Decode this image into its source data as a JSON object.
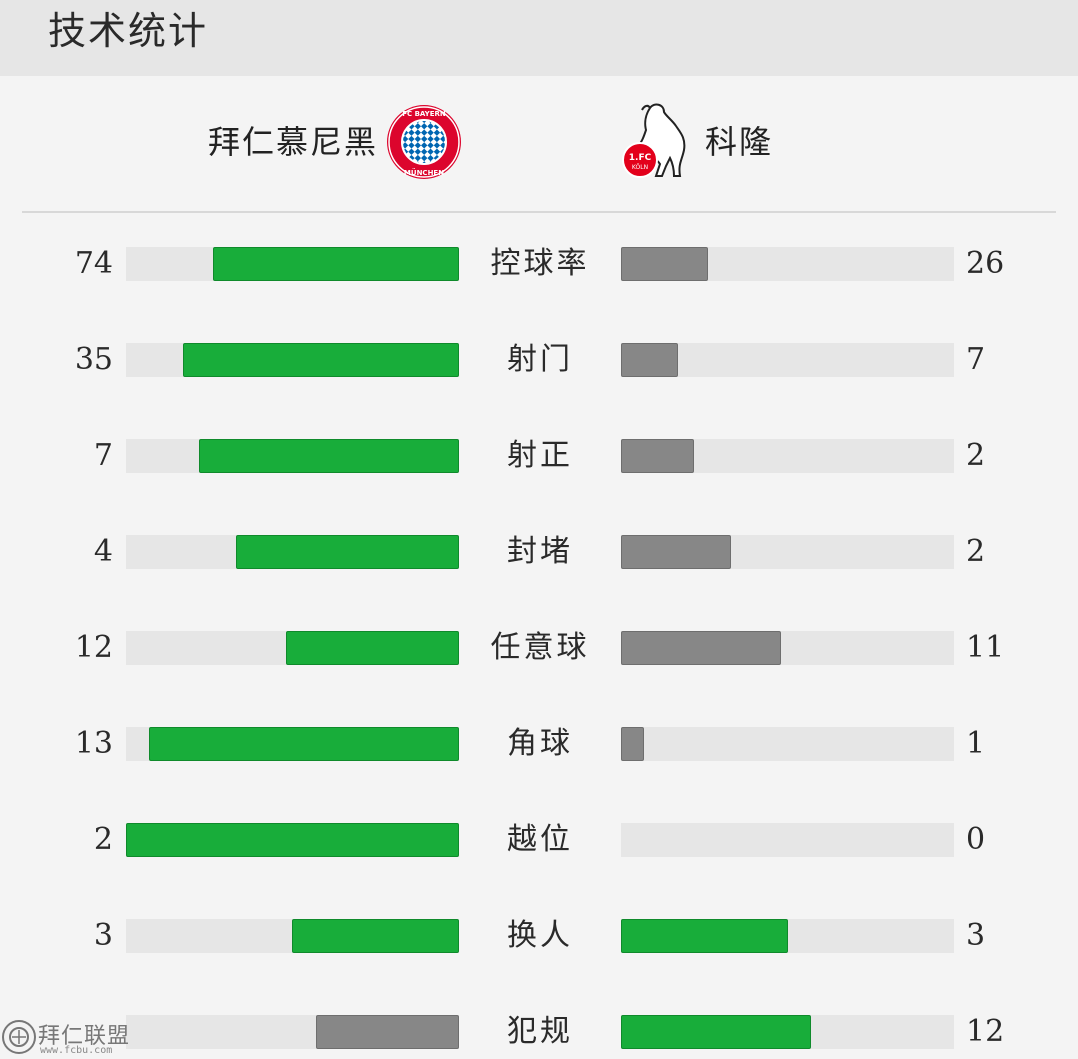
{
  "header": {
    "title": "技术统计"
  },
  "teams": {
    "home": {
      "name": "拜仁慕尼黑",
      "logo": "fc-bayern-logo",
      "logo_text": "FC BAYERN MÜNCHEN",
      "color": "#18ad3a"
    },
    "away": {
      "name": "科隆",
      "logo": "fc-koeln-logo",
      "logo_text": "1.FC KÖLN",
      "color": "#878787"
    }
  },
  "colors": {
    "winner": "#18ad3a",
    "loser": "#878787",
    "track": "#e6e6e6"
  },
  "stats": [
    {
      "label": "控球率",
      "home": "74",
      "away": "26",
      "home_fill": 0.74,
      "away_fill": 0.26,
      "home_color": "green",
      "away_color": "gray"
    },
    {
      "label": "射门",
      "home": "35",
      "away": "7",
      "home_fill": 0.83,
      "away_fill": 0.17,
      "home_color": "green",
      "away_color": "gray"
    },
    {
      "label": "射正",
      "home": "7",
      "away": "2",
      "home_fill": 0.78,
      "away_fill": 0.22,
      "home_color": "green",
      "away_color": "gray"
    },
    {
      "label": "封堵",
      "home": "4",
      "away": "2",
      "home_fill": 0.67,
      "away_fill": 0.33,
      "home_color": "green",
      "away_color": "gray"
    },
    {
      "label": "任意球",
      "home": "12",
      "away": "11",
      "home_fill": 0.52,
      "away_fill": 0.48,
      "home_color": "green",
      "away_color": "gray"
    },
    {
      "label": "角球",
      "home": "13",
      "away": "1",
      "home_fill": 0.93,
      "away_fill": 0.07,
      "home_color": "green",
      "away_color": "gray"
    },
    {
      "label": "越位",
      "home": "2",
      "away": "0",
      "home_fill": 1.0,
      "away_fill": 0.0,
      "home_color": "green",
      "away_color": "gray"
    },
    {
      "label": "换人",
      "home": "3",
      "away": "3",
      "home_fill": 0.5,
      "away_fill": 0.5,
      "home_color": "green",
      "away_color": "green"
    },
    {
      "label": "犯规",
      "home": "",
      "away": "12",
      "home_fill": 0.43,
      "away_fill": 0.57,
      "home_color": "gray",
      "away_color": "green"
    }
  ],
  "watermark": {
    "text": "拜仁联盟",
    "url": "www.fcbu.com"
  }
}
